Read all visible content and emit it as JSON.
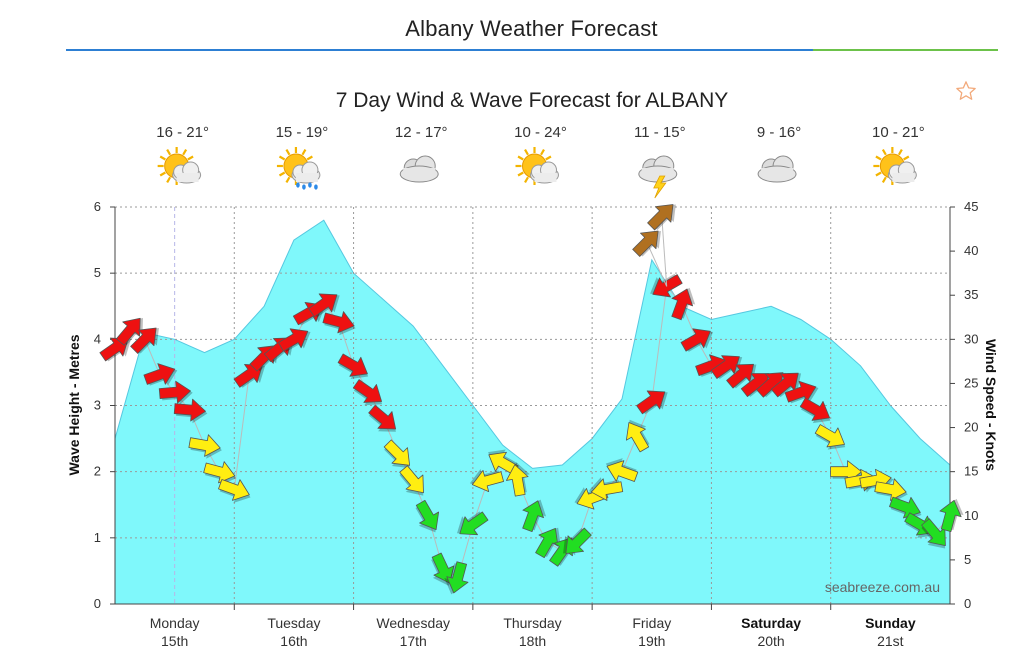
{
  "page": {
    "title": "Albany Weather Forecast"
  },
  "colors": {
    "wave_fill": "#7ff8fb",
    "wave_stroke": "#55c8e0",
    "arrow_red": "#ee1111",
    "arrow_yellow": "#ffee11",
    "arrow_green": "#22dd22",
    "arrow_brown": "#b07020",
    "rule_blue": "#2d7fd3",
    "rule_green": "#6cc24a"
  },
  "chart_data": {
    "type": "area",
    "title": "7 Day Wind & Wave Forecast for ALBANY",
    "watermark": "seabreeze.com.au",
    "left_axis": {
      "label": "Wave Height - Metres",
      "range": [
        0,
        6
      ],
      "ticks": [
        "0",
        "1",
        "2",
        "3",
        "4",
        "5",
        "6"
      ]
    },
    "right_axis": {
      "label": "Wind Speed - Knots",
      "range": [
        0,
        45
      ],
      "ticks": [
        "0",
        "5",
        "10",
        "15",
        "20",
        "25",
        "30",
        "35",
        "40",
        "45"
      ]
    },
    "grid": true,
    "x_range_hours": [
      0,
      168
    ],
    "days": [
      {
        "day": "Monday",
        "date": "15th",
        "temp": "16 - 21°",
        "icon": "sun-cloud-icon",
        "bold": false
      },
      {
        "day": "Tuesday",
        "date": "16th",
        "temp": "15 - 19°",
        "icon": "sun-cloud-rain-icon",
        "bold": false
      },
      {
        "day": "Wednesday",
        "date": "17th",
        "temp": "12 - 17°",
        "icon": "cloud-icon",
        "bold": false
      },
      {
        "day": "Thursday",
        "date": "18th",
        "temp": "10 - 24°",
        "icon": "sun-cloud-icon",
        "bold": false
      },
      {
        "day": "Friday",
        "date": "19th",
        "temp": "11 - 15°",
        "icon": "storm-icon",
        "bold": false
      },
      {
        "day": "Saturday",
        "date": "20th",
        "temp": "9 - 16°",
        "icon": "cloud-icon",
        "bold": true
      },
      {
        "day": "Sunday",
        "date": "21st",
        "temp": "10 - 21°",
        "icon": "sun-cloud-icon",
        "bold": true
      }
    ],
    "wave_height_series": {
      "hours": [
        0,
        6,
        12,
        18,
        24,
        30,
        36,
        42,
        48,
        54,
        60,
        66,
        72,
        78,
        84,
        90,
        96,
        102,
        108,
        114,
        120,
        126,
        132,
        138,
        144,
        150,
        156,
        162,
        168
      ],
      "values": [
        2.5,
        4.1,
        4.0,
        3.8,
        4.0,
        4.5,
        5.5,
        5.8,
        5.0,
        4.6,
        4.2,
        3.6,
        3.0,
        2.4,
        2.05,
        2.1,
        2.5,
        3.1,
        5.2,
        4.5,
        4.3,
        4.4,
        4.5,
        4.3,
        4.0,
        3.6,
        3.0,
        2.5,
        2.1
      ]
    },
    "wind_series": {
      "hours": [
        0,
        3,
        6,
        9,
        12,
        15,
        18,
        21,
        24,
        27,
        30,
        33,
        36,
        39,
        42,
        45,
        48,
        51,
        54,
        57,
        60,
        63,
        66,
        69,
        72,
        75,
        78,
        81,
        84,
        87,
        90,
        93,
        96,
        99,
        102,
        105,
        108,
        111,
        114,
        117,
        120,
        123,
        126,
        129,
        132,
        135,
        138,
        141,
        144,
        147,
        150,
        153,
        156,
        159,
        162,
        165,
        168
      ],
      "knots": [
        29,
        31,
        30,
        26,
        24,
        22,
        18,
        15,
        13,
        26,
        28,
        29,
        30,
        33,
        34,
        32,
        27,
        24,
        21,
        17,
        14,
        10,
        4,
        3,
        9,
        14,
        16,
        14,
        10,
        7,
        6,
        7,
        12,
        13,
        15,
        19,
        23,
        36,
        34,
        30,
        27,
        27,
        26,
        25,
        25,
        25,
        24,
        22,
        19,
        15,
        14,
        14,
        13,
        11,
        9,
        8,
        10
      ],
      "direction_deg": [
        235,
        220,
        225,
        250,
        265,
        275,
        280,
        285,
        290,
        235,
        225,
        230,
        240,
        240,
        235,
        285,
        300,
        305,
        310,
        315,
        320,
        330,
        335,
        15,
        55,
        75,
        120,
        170,
        200,
        210,
        215,
        45,
        70,
        80,
        110,
        150,
        235,
        60,
        200,
        240,
        250,
        235,
        230,
        232,
        228,
        230,
        250,
        300,
        300,
        270,
        260,
        260,
        280,
        290,
        300,
        320,
        195
      ],
      "highlight_hours": [
        107,
        110
      ],
      "highlight_knots": [
        41,
        44
      ]
    }
  }
}
